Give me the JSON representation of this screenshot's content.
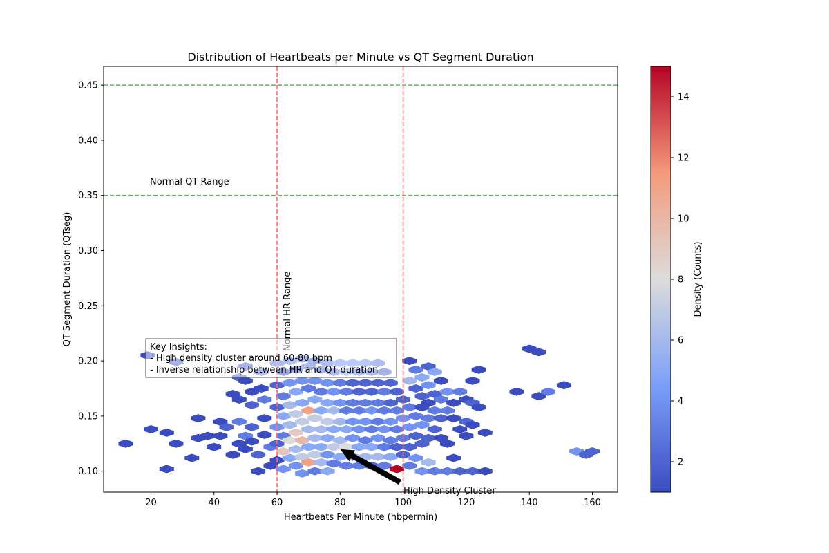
{
  "chart_data": {
    "type": "heatmap",
    "subtype": "hexbin",
    "title": "Distribution of Heartbeats per Minute vs QT Segment Duration",
    "xlabel": "Heartbeats Per Minute (hbpermin)",
    "ylabel": "QT Segment Duration (QTseg)",
    "xlim": [
      5,
      168
    ],
    "ylim": [
      0.081,
      0.467
    ],
    "xticks": [
      20,
      40,
      60,
      80,
      100,
      120,
      140,
      160
    ],
    "yticks": [
      0.1,
      0.15,
      0.2,
      0.25,
      0.3,
      0.35,
      0.4,
      0.45
    ],
    "ytick_labels": [
      "0.10",
      "0.15",
      "0.20",
      "0.25",
      "0.30",
      "0.35",
      "0.40",
      "0.45"
    ],
    "grid": false,
    "colormap": "coolwarm",
    "colorbar": {
      "label": "Density (Counts)",
      "min": 1,
      "max": 15,
      "ticks": [
        2,
        4,
        6,
        8,
        10,
        12,
        14
      ]
    },
    "reference_lines": [
      {
        "orientation": "vertical",
        "value": 60,
        "color": "#ff6b6b",
        "style": "dashed"
      },
      {
        "orientation": "vertical",
        "value": 100,
        "color": "#ff6b6b",
        "style": "dashed"
      },
      {
        "orientation": "horizontal",
        "value": 0.35,
        "color": "#5cb85c",
        "style": "dashed"
      },
      {
        "orientation": "horizontal",
        "value": 0.45,
        "color": "#5cb85c",
        "style": "dashed"
      }
    ],
    "text_annotations": {
      "normal_qt": "Normal QT Range",
      "normal_hr": "Normal HR Range",
      "cluster_label": "High Density Cluster",
      "insights_title": "Key Insights:",
      "insight_1": "- High density cluster around 60-80 bpm",
      "insight_2": "- Inverse relationship between HR and QT duration"
    },
    "arrow": {
      "from": [
        99,
        0.09
      ],
      "to": [
        80,
        0.12
      ]
    },
    "bins": [
      {
        "x": 19,
        "y": 0.205,
        "c": 1
      },
      {
        "x": 28,
        "y": 0.199,
        "c": 2
      },
      {
        "x": 12,
        "y": 0.125,
        "c": 1
      },
      {
        "x": 20,
        "y": 0.138,
        "c": 1
      },
      {
        "x": 25,
        "y": 0.135,
        "c": 1
      },
      {
        "x": 28,
        "y": 0.125,
        "c": 1
      },
      {
        "x": 25,
        "y": 0.102,
        "c": 1
      },
      {
        "x": 33,
        "y": 0.112,
        "c": 1
      },
      {
        "x": 35,
        "y": 0.148,
        "c": 1
      },
      {
        "x": 35,
        "y": 0.13,
        "c": 1
      },
      {
        "x": 38,
        "y": 0.132,
        "c": 1
      },
      {
        "x": 40,
        "y": 0.122,
        "c": 1
      },
      {
        "x": 42,
        "y": 0.145,
        "c": 1
      },
      {
        "x": 44,
        "y": 0.14,
        "c": 2
      },
      {
        "x": 42,
        "y": 0.132,
        "c": 1
      },
      {
        "x": 46,
        "y": 0.115,
        "c": 1
      },
      {
        "x": 48,
        "y": 0.145,
        "c": 3
      },
      {
        "x": 48,
        "y": 0.125,
        "c": 1
      },
      {
        "x": 50,
        "y": 0.132,
        "c": 3
      },
      {
        "x": 50,
        "y": 0.12,
        "c": 1
      },
      {
        "x": 46,
        "y": 0.17,
        "c": 1
      },
      {
        "x": 48,
        "y": 0.165,
        "c": 1
      },
      {
        "x": 48,
        "y": 0.185,
        "c": 2
      },
      {
        "x": 50,
        "y": 0.195,
        "c": 2
      },
      {
        "x": 50,
        "y": 0.182,
        "c": 1
      },
      {
        "x": 52,
        "y": 0.172,
        "c": 1
      },
      {
        "x": 52,
        "y": 0.16,
        "c": 2
      },
      {
        "x": 52,
        "y": 0.14,
        "c": 2
      },
      {
        "x": 52,
        "y": 0.127,
        "c": 1
      },
      {
        "x": 54,
        "y": 0.115,
        "c": 2
      },
      {
        "x": 54,
        "y": 0.1,
        "c": 1
      },
      {
        "x": 55,
        "y": 0.19,
        "c": 3
      },
      {
        "x": 55,
        "y": 0.175,
        "c": 1
      },
      {
        "x": 56,
        "y": 0.165,
        "c": 3
      },
      {
        "x": 56,
        "y": 0.148,
        "c": 1
      },
      {
        "x": 56,
        "y": 0.133,
        "c": 1
      },
      {
        "x": 58,
        "y": 0.122,
        "c": 3
      },
      {
        "x": 58,
        "y": 0.105,
        "c": 1
      },
      {
        "x": 60,
        "y": 0.198,
        "c": 3
      },
      {
        "x": 60,
        "y": 0.178,
        "c": 2
      },
      {
        "x": 60,
        "y": 0.158,
        "c": 2
      },
      {
        "x": 60,
        "y": 0.14,
        "c": 4
      },
      {
        "x": 60,
        "y": 0.125,
        "c": 2
      },
      {
        "x": 60,
        "y": 0.11,
        "c": 1
      },
      {
        "x": 62,
        "y": 0.19,
        "c": 1
      },
      {
        "x": 62,
        "y": 0.168,
        "c": 3
      },
      {
        "x": 62,
        "y": 0.15,
        "c": 5
      },
      {
        "x": 62,
        "y": 0.132,
        "c": 3
      },
      {
        "x": 62,
        "y": 0.118,
        "c": 9
      },
      {
        "x": 62,
        "y": 0.102,
        "c": 4
      },
      {
        "x": 64,
        "y": 0.2,
        "c": 3
      },
      {
        "x": 64,
        "y": 0.18,
        "c": 4
      },
      {
        "x": 64,
        "y": 0.16,
        "c": 6
      },
      {
        "x": 64,
        "y": 0.142,
        "c": 6
      },
      {
        "x": 64,
        "y": 0.128,
        "c": 8
      },
      {
        "x": 64,
        "y": 0.112,
        "c": 5
      },
      {
        "x": 66,
        "y": 0.192,
        "c": 2
      },
      {
        "x": 66,
        "y": 0.172,
        "c": 5
      },
      {
        "x": 66,
        "y": 0.152,
        "c": 7
      },
      {
        "x": 66,
        "y": 0.135,
        "c": 9
      },
      {
        "x": 66,
        "y": 0.12,
        "c": 6
      },
      {
        "x": 66,
        "y": 0.105,
        "c": 4
      },
      {
        "x": 68,
        "y": 0.202,
        "c": 3
      },
      {
        "x": 68,
        "y": 0.182,
        "c": 4
      },
      {
        "x": 68,
        "y": 0.162,
        "c": 5
      },
      {
        "x": 68,
        "y": 0.145,
        "c": 7
      },
      {
        "x": 68,
        "y": 0.128,
        "c": 10
      },
      {
        "x": 68,
        "y": 0.113,
        "c": 7
      },
      {
        "x": 68,
        "y": 0.098,
        "c": 4
      },
      {
        "x": 70,
        "y": 0.195,
        "c": 3
      },
      {
        "x": 70,
        "y": 0.175,
        "c": 3
      },
      {
        "x": 70,
        "y": 0.155,
        "c": 11
      },
      {
        "x": 70,
        "y": 0.138,
        "c": 6
      },
      {
        "x": 70,
        "y": 0.122,
        "c": 5
      },
      {
        "x": 70,
        "y": 0.108,
        "c": 11
      },
      {
        "x": 72,
        "y": 0.2,
        "c": 2
      },
      {
        "x": 72,
        "y": 0.182,
        "c": 4
      },
      {
        "x": 72,
        "y": 0.165,
        "c": 5
      },
      {
        "x": 72,
        "y": 0.148,
        "c": 7
      },
      {
        "x": 72,
        "y": 0.13,
        "c": 6
      },
      {
        "x": 72,
        "y": 0.115,
        "c": 7
      },
      {
        "x": 72,
        "y": 0.1,
        "c": 3
      },
      {
        "x": 74,
        "y": 0.192,
        "c": 2
      },
      {
        "x": 74,
        "y": 0.172,
        "c": 3
      },
      {
        "x": 74,
        "y": 0.155,
        "c": 5
      },
      {
        "x": 74,
        "y": 0.138,
        "c": 6
      },
      {
        "x": 74,
        "y": 0.122,
        "c": 5
      },
      {
        "x": 74,
        "y": 0.108,
        "c": 6
      },
      {
        "x": 76,
        "y": 0.198,
        "c": 3
      },
      {
        "x": 76,
        "y": 0.18,
        "c": 4
      },
      {
        "x": 76,
        "y": 0.162,
        "c": 5
      },
      {
        "x": 76,
        "y": 0.145,
        "c": 7
      },
      {
        "x": 76,
        "y": 0.13,
        "c": 5
      },
      {
        "x": 76,
        "y": 0.115,
        "c": 4
      },
      {
        "x": 76,
        "y": 0.1,
        "c": 5
      },
      {
        "x": 78,
        "y": 0.19,
        "c": 3
      },
      {
        "x": 78,
        "y": 0.172,
        "c": 4
      },
      {
        "x": 78,
        "y": 0.155,
        "c": 6
      },
      {
        "x": 78,
        "y": 0.138,
        "c": 5
      },
      {
        "x": 78,
        "y": 0.122,
        "c": 7
      },
      {
        "x": 78,
        "y": 0.107,
        "c": 3
      },
      {
        "x": 80,
        "y": 0.198,
        "c": 4
      },
      {
        "x": 80,
        "y": 0.18,
        "c": 3
      },
      {
        "x": 80,
        "y": 0.162,
        "c": 4
      },
      {
        "x": 80,
        "y": 0.145,
        "c": 6
      },
      {
        "x": 80,
        "y": 0.128,
        "c": 6
      },
      {
        "x": 80,
        "y": 0.113,
        "c": 5
      },
      {
        "x": 82,
        "y": 0.19,
        "c": 5
      },
      {
        "x": 82,
        "y": 0.172,
        "c": 3
      },
      {
        "x": 82,
        "y": 0.155,
        "c": 3
      },
      {
        "x": 82,
        "y": 0.138,
        "c": 5
      },
      {
        "x": 82,
        "y": 0.122,
        "c": 8
      },
      {
        "x": 82,
        "y": 0.105,
        "c": 3
      },
      {
        "x": 84,
        "y": 0.198,
        "c": 4
      },
      {
        "x": 84,
        "y": 0.18,
        "c": 2
      },
      {
        "x": 84,
        "y": 0.162,
        "c": 3
      },
      {
        "x": 84,
        "y": 0.145,
        "c": 4
      },
      {
        "x": 84,
        "y": 0.13,
        "c": 4
      },
      {
        "x": 84,
        "y": 0.113,
        "c": 5
      },
      {
        "x": 86,
        "y": 0.19,
        "c": 3
      },
      {
        "x": 86,
        "y": 0.172,
        "c": 2
      },
      {
        "x": 86,
        "y": 0.155,
        "c": 3
      },
      {
        "x": 86,
        "y": 0.138,
        "c": 4
      },
      {
        "x": 86,
        "y": 0.122,
        "c": 5
      },
      {
        "x": 86,
        "y": 0.105,
        "c": 3
      },
      {
        "x": 88,
        "y": 0.198,
        "c": 4
      },
      {
        "x": 88,
        "y": 0.18,
        "c": 2
      },
      {
        "x": 88,
        "y": 0.162,
        "c": 3
      },
      {
        "x": 88,
        "y": 0.145,
        "c": 4
      },
      {
        "x": 88,
        "y": 0.128,
        "c": 3
      },
      {
        "x": 88,
        "y": 0.113,
        "c": 6
      },
      {
        "x": 90,
        "y": 0.19,
        "c": 3
      },
      {
        "x": 90,
        "y": 0.172,
        "c": 2
      },
      {
        "x": 90,
        "y": 0.155,
        "c": 4
      },
      {
        "x": 90,
        "y": 0.138,
        "c": 3
      },
      {
        "x": 90,
        "y": 0.122,
        "c": 5
      },
      {
        "x": 90,
        "y": 0.105,
        "c": 2
      },
      {
        "x": 92,
        "y": 0.198,
        "c": 3
      },
      {
        "x": 92,
        "y": 0.18,
        "c": 2
      },
      {
        "x": 92,
        "y": 0.162,
        "c": 3
      },
      {
        "x": 92,
        "y": 0.145,
        "c": 3
      },
      {
        "x": 92,
        "y": 0.13,
        "c": 4
      },
      {
        "x": 92,
        "y": 0.113,
        "c": 6
      },
      {
        "x": 94,
        "y": 0.19,
        "c": 2
      },
      {
        "x": 94,
        "y": 0.172,
        "c": 3
      },
      {
        "x": 94,
        "y": 0.155,
        "c": 3
      },
      {
        "x": 94,
        "y": 0.138,
        "c": 4
      },
      {
        "x": 94,
        "y": 0.122,
        "c": 3
      },
      {
        "x": 94,
        "y": 0.105,
        "c": 3
      },
      {
        "x": 96,
        "y": 0.18,
        "c": 2
      },
      {
        "x": 96,
        "y": 0.162,
        "c": 2
      },
      {
        "x": 96,
        "y": 0.145,
        "c": 4
      },
      {
        "x": 96,
        "y": 0.128,
        "c": 3
      },
      {
        "x": 96,
        "y": 0.113,
        "c": 5
      },
      {
        "x": 98,
        "y": 0.172,
        "c": 2
      },
      {
        "x": 98,
        "y": 0.155,
        "c": 3
      },
      {
        "x": 98,
        "y": 0.138,
        "c": 3
      },
      {
        "x": 98,
        "y": 0.122,
        "c": 2
      },
      {
        "x": 98,
        "y": 0.102,
        "c": 15
      },
      {
        "x": 100,
        "y": 0.165,
        "c": 2
      },
      {
        "x": 100,
        "y": 0.148,
        "c": 4
      },
      {
        "x": 100,
        "y": 0.13,
        "c": 3
      },
      {
        "x": 100,
        "y": 0.115,
        "c": 2
      },
      {
        "x": 102,
        "y": 0.2,
        "c": 1
      },
      {
        "x": 102,
        "y": 0.182,
        "c": 6
      },
      {
        "x": 102,
        "y": 0.158,
        "c": 3
      },
      {
        "x": 102,
        "y": 0.14,
        "c": 4
      },
      {
        "x": 102,
        "y": 0.122,
        "c": 2
      },
      {
        "x": 102,
        "y": 0.105,
        "c": 3
      },
      {
        "x": 104,
        "y": 0.192,
        "c": 3
      },
      {
        "x": 104,
        "y": 0.175,
        "c": 2
      },
      {
        "x": 104,
        "y": 0.15,
        "c": 3
      },
      {
        "x": 104,
        "y": 0.132,
        "c": 2
      },
      {
        "x": 104,
        "y": 0.112,
        "c": 4
      },
      {
        "x": 106,
        "y": 0.185,
        "c": 5
      },
      {
        "x": 106,
        "y": 0.168,
        "c": 2
      },
      {
        "x": 106,
        "y": 0.158,
        "c": 1
      },
      {
        "x": 106,
        "y": 0.142,
        "c": 4
      },
      {
        "x": 106,
        "y": 0.125,
        "c": 2
      },
      {
        "x": 106,
        "y": 0.1,
        "c": 4
      },
      {
        "x": 108,
        "y": 0.195,
        "c": 2
      },
      {
        "x": 108,
        "y": 0.178,
        "c": 4
      },
      {
        "x": 108,
        "y": 0.162,
        "c": 1
      },
      {
        "x": 108,
        "y": 0.148,
        "c": 3
      },
      {
        "x": 108,
        "y": 0.13,
        "c": 2
      },
      {
        "x": 108,
        "y": 0.108,
        "c": 6
      },
      {
        "x": 110,
        "y": 0.19,
        "c": 5
      },
      {
        "x": 110,
        "y": 0.17,
        "c": 2
      },
      {
        "x": 110,
        "y": 0.155,
        "c": 3
      },
      {
        "x": 110,
        "y": 0.138,
        "c": 2
      },
      {
        "x": 110,
        "y": 0.1,
        "c": 3
      },
      {
        "x": 112,
        "y": 0.182,
        "c": 1
      },
      {
        "x": 112,
        "y": 0.165,
        "c": 3
      },
      {
        "x": 112,
        "y": 0.148,
        "c": 2
      },
      {
        "x": 112,
        "y": 0.13,
        "c": 1
      },
      {
        "x": 114,
        "y": 0.172,
        "c": 4
      },
      {
        "x": 114,
        "y": 0.155,
        "c": 3
      },
      {
        "x": 114,
        "y": 0.125,
        "c": 1
      },
      {
        "x": 114,
        "y": 0.1,
        "c": 3
      },
      {
        "x": 116,
        "y": 0.162,
        "c": 1
      },
      {
        "x": 116,
        "y": 0.148,
        "c": 1
      },
      {
        "x": 116,
        "y": 0.112,
        "c": 1
      },
      {
        "x": 118,
        "y": 0.172,
        "c": 3
      },
      {
        "x": 118,
        "y": 0.138,
        "c": 1
      },
      {
        "x": 118,
        "y": 0.1,
        "c": 2
      },
      {
        "x": 120,
        "y": 0.165,
        "c": 1
      },
      {
        "x": 120,
        "y": 0.145,
        "c": 2
      },
      {
        "x": 120,
        "y": 0.132,
        "c": 1
      },
      {
        "x": 122,
        "y": 0.182,
        "c": 1
      },
      {
        "x": 122,
        "y": 0.162,
        "c": 2
      },
      {
        "x": 122,
        "y": 0.142,
        "c": 1
      },
      {
        "x": 122,
        "y": 0.1,
        "c": 2
      },
      {
        "x": 124,
        "y": 0.192,
        "c": 1
      },
      {
        "x": 124,
        "y": 0.158,
        "c": 1
      },
      {
        "x": 126,
        "y": 0.135,
        "c": 1
      },
      {
        "x": 126,
        "y": 0.1,
        "c": 1
      },
      {
        "x": 136,
        "y": 0.172,
        "c": 1
      },
      {
        "x": 140,
        "y": 0.211,
        "c": 1
      },
      {
        "x": 143,
        "y": 0.208,
        "c": 1
      },
      {
        "x": 143,
        "y": 0.168,
        "c": 1
      },
      {
        "x": 146,
        "y": 0.172,
        "c": 3
      },
      {
        "x": 151,
        "y": 0.178,
        "c": 1
      },
      {
        "x": 155,
        "y": 0.118,
        "c": 4
      },
      {
        "x": 158,
        "y": 0.115,
        "c": 2
      },
      {
        "x": 160,
        "y": 0.118,
        "c": 2
      }
    ]
  }
}
